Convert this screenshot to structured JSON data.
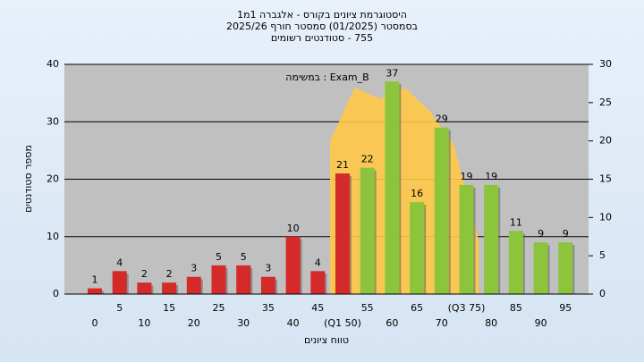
{
  "chart_data": {
    "type": "bar",
    "title": [
      "היסטוגרמת ציונים בקורס - אלגברה 1מ1",
      "בסמסטר (01/2025) סמסטר חורף 2025/26",
      "755 - סטודנטים רשומים"
    ],
    "annotation": "במשימה : Exam_B",
    "x_label": "טווח ציונים",
    "y_label": "מספר סטודנטים",
    "categories": [
      "0",
      "5",
      "10",
      "15",
      "20",
      "25",
      "30",
      "35",
      "40",
      "45",
      "(Q1 50)",
      "55",
      "60",
      "65",
      "70",
      "(Q3 75)",
      "80",
      "85",
      "90",
      "95"
    ],
    "values": [
      1,
      4,
      2,
      2,
      3,
      5,
      5,
      3,
      10,
      4,
      21,
      22,
      37,
      16,
      29,
      19,
      19,
      11,
      9,
      9
    ],
    "colors": [
      "#d42a2a",
      "#d42a2a",
      "#d42a2a",
      "#d42a2a",
      "#d42a2a",
      "#d42a2a",
      "#d42a2a",
      "#d42a2a",
      "#d42a2a",
      "#d42a2a",
      "#d42a2a",
      "#8cc43c",
      "#8cc43c",
      "#8cc43c",
      "#8cc43c",
      "#8cc43c",
      "#8cc43c",
      "#8cc43c",
      "#8cc43c",
      "#8cc43c"
    ],
    "area": {
      "axis": "y2",
      "color": "#ffc848",
      "values": [
        null,
        null,
        null,
        null,
        null,
        null,
        null,
        null,
        null,
        null,
        20,
        27,
        25.5,
        27,
        24,
        19.5,
        7,
        null,
        null,
        null
      ]
    },
    "ylim": [
      0,
      40
    ],
    "yticks": [
      0,
      10,
      20,
      30,
      40
    ],
    "y2lim": [
      0,
      30
    ],
    "y2ticks": [
      0,
      5,
      10,
      15,
      20,
      25,
      30
    ],
    "grid": true
  }
}
